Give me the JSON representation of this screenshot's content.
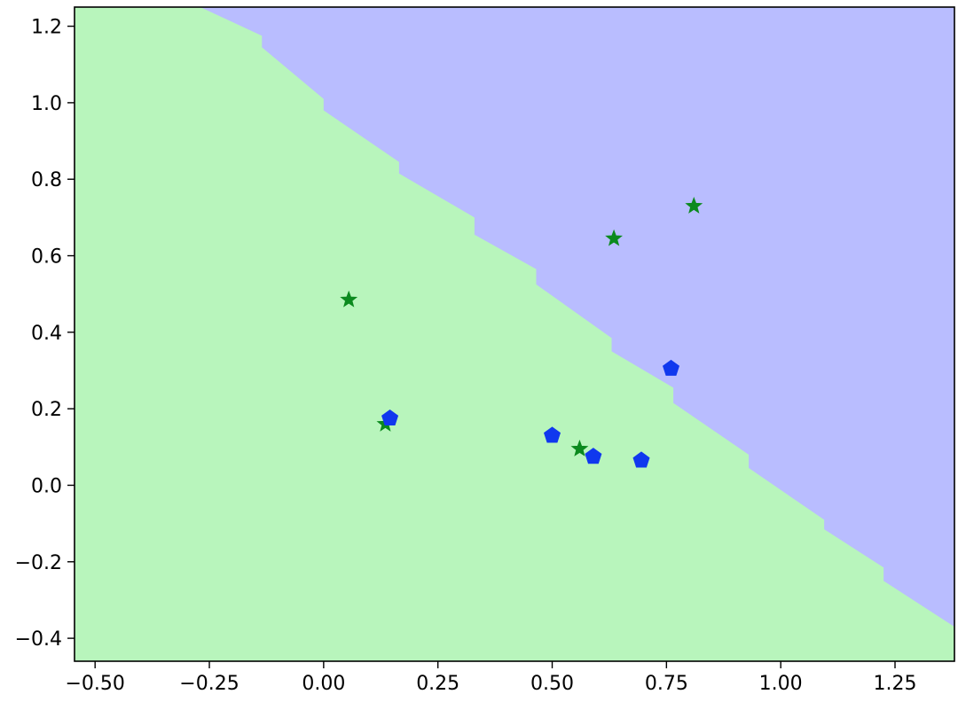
{
  "chart_data": {
    "type": "scatter",
    "title": "",
    "xlabel": "",
    "ylabel": "",
    "xlim": [
      -0.545,
      1.38
    ],
    "ylim": [
      -0.46,
      1.25
    ],
    "grid": false,
    "xticks": [
      -0.5,
      -0.25,
      0.0,
      0.25,
      0.5,
      0.75,
      1.0,
      1.25
    ],
    "xtick_labels": [
      "−0.50",
      "−0.25",
      "0.00",
      "0.25",
      "0.50",
      "0.75",
      "1.00",
      "1.25"
    ],
    "yticks": [
      -0.4,
      -0.2,
      0.0,
      0.2,
      0.4,
      0.6,
      0.8,
      1.0,
      1.2
    ],
    "ytick_labels": [
      "−0.4",
      "−0.2",
      "0.0",
      "0.2",
      "0.4",
      "0.6",
      "0.8",
      "1.0",
      "1.2"
    ],
    "regions": [
      {
        "color": "#b8f5bc",
        "label": "green"
      },
      {
        "color": "#b9bdff",
        "label": "blue"
      }
    ],
    "decision_boundary": {
      "x": [
        -0.27,
        -0.135,
        -0.135,
        0.0,
        0.0,
        0.165,
        0.165,
        0.33,
        0.33,
        0.465,
        0.465,
        0.63,
        0.63,
        0.765,
        0.765,
        0.93,
        0.93,
        1.095,
        1.095,
        1.225,
        1.225,
        1.38
      ],
      "y": [
        1.25,
        1.175,
        1.145,
        1.01,
        0.98,
        0.845,
        0.815,
        0.7,
        0.655,
        0.565,
        0.525,
        0.385,
        0.35,
        0.255,
        0.215,
        0.08,
        0.045,
        -0.09,
        -0.115,
        -0.215,
        -0.25,
        -0.37
      ]
    },
    "series": [
      {
        "marker": "star",
        "color": "#0b8a1e",
        "points": [
          {
            "x": 0.055,
            "y": 0.485
          },
          {
            "x": 0.135,
            "y": 0.16
          },
          {
            "x": 0.56,
            "y": 0.095
          },
          {
            "x": 0.635,
            "y": 0.645
          },
          {
            "x": 0.81,
            "y": 0.73
          }
        ]
      },
      {
        "marker": "pentagon",
        "color": "#1038ee",
        "points": [
          {
            "x": 0.145,
            "y": 0.175
          },
          {
            "x": 0.5,
            "y": 0.13
          },
          {
            "x": 0.59,
            "y": 0.075
          },
          {
            "x": 0.695,
            "y": 0.065
          },
          {
            "x": 0.76,
            "y": 0.305
          }
        ]
      }
    ]
  }
}
